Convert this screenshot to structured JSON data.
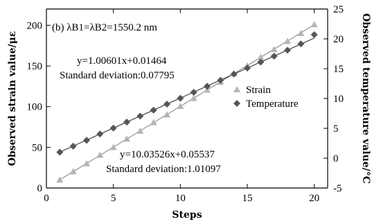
{
  "chart_data": {
    "type": "line",
    "title": "(b) λB1=λB2=1550.2 nm",
    "xlabel": "Steps",
    "ylabel_left": "Observed strain value/με",
    "ylabel_right": "Observed temperature value/°C",
    "xlim": [
      0,
      21
    ],
    "ylim_left": [
      0,
      220
    ],
    "ylim_right": [
      -5,
      25
    ],
    "x_ticks": [
      0,
      5,
      10,
      15,
      20
    ],
    "y_left_ticks": [
      0,
      50,
      100,
      150,
      200
    ],
    "y_right_ticks": [
      -5,
      0,
      5,
      10,
      15,
      20,
      25
    ],
    "grid": false,
    "legend_position": "center-right",
    "series": [
      {
        "name": "Strain",
        "axis": "left",
        "marker": "triangle",
        "color": "#b5b5b5",
        "x": [
          1,
          2,
          3,
          4,
          5,
          6,
          7,
          8,
          9,
          10,
          11,
          12,
          13,
          14,
          15,
          16,
          17,
          18,
          19,
          20
        ],
        "values": [
          10,
          20.3,
          30.1,
          40.5,
          50.0,
          60.4,
          70.1,
          80.6,
          90.2,
          100.5,
          110.3,
          120.5,
          130.2,
          140.6,
          150.3,
          160.7,
          170.4,
          180.5,
          190.3,
          201
        ]
      },
      {
        "name": "Temperature",
        "axis": "right",
        "marker": "diamond",
        "color": "#555555",
        "x": [
          1,
          2,
          3,
          4,
          5,
          6,
          7,
          8,
          9,
          10,
          11,
          12,
          13,
          14,
          15,
          16,
          17,
          18,
          19,
          20
        ],
        "values": [
          1.0,
          2.0,
          3.0,
          4.05,
          5.05,
          6.05,
          7.05,
          8.05,
          9.05,
          10.05,
          11.05,
          12.05,
          13.05,
          14.1,
          15.1,
          16.1,
          17.1,
          18.1,
          19.15,
          20.7
        ]
      }
    ],
    "fits": [
      {
        "series": "Strain",
        "equation": "y=10.03526x+0.05537",
        "deviation_label": "Standard   deviation:1.01097",
        "slope": 10.03526,
        "intercept": 0.05537
      },
      {
        "series": "Temperature",
        "equation": "y=1.00601x+0.01464",
        "deviation_label": "Standard   deviation:0.07795",
        "slope": 1.00601,
        "intercept": 0.01464
      }
    ]
  }
}
